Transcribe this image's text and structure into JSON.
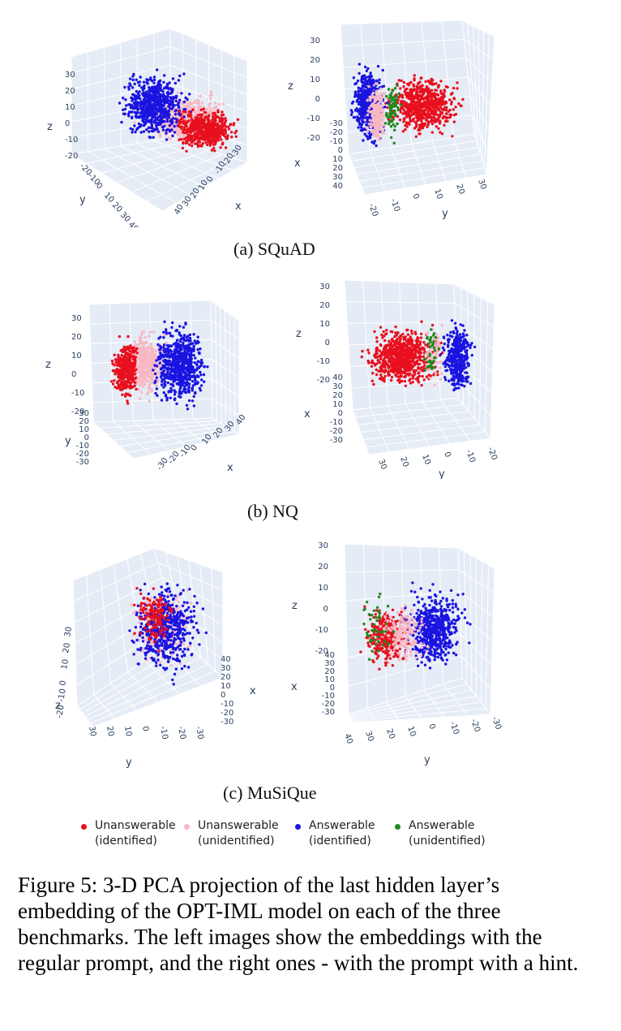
{
  "figure": {
    "subcaptions": [
      "(a) SQuAD",
      "(b) NQ",
      "(c) MuSiQue"
    ],
    "caption": "Figure 5: 3-D PCA projection of the last hidden layer’s embedding of the OPT-IML model on each of the three benchmarks. The left images show the embeddings with the regular prompt, and the right ones - with the prompt with a hint.",
    "legend": [
      {
        "line1": "Unanswerable",
        "line2": "(identified)",
        "color": "#e8101e"
      },
      {
        "line1": "Unanswerable",
        "line2": "(unidentified)",
        "color": "#f7b8c4"
      },
      {
        "line1": "Answerable",
        "line2": "(identified)",
        "color": "#1a14e0"
      },
      {
        "line1": "Answerable",
        "line2": "(unidentified)",
        "color": "#1e8a1e"
      }
    ]
  },
  "panels": [
    {
      "id": "squad-left",
      "axis_titles": {
        "x": "x",
        "y": "y",
        "z": "z"
      },
      "z_ticks": [
        "30",
        "20",
        "10",
        "0",
        "-10",
        "-20"
      ],
      "y_ticks": [
        "-20",
        "-10",
        "0",
        "10",
        "20",
        "30",
        "40"
      ],
      "x_ticks": [
        "40",
        "30",
        "20",
        "10",
        "0",
        "-10",
        "-20",
        "-30"
      ],
      "dominant_clusters": [
        "Answerable (identified)",
        "Unanswerable (unidentified)",
        "Unanswerable (identified)"
      ]
    },
    {
      "id": "squad-right",
      "axis_titles": {
        "x": "x",
        "y": "y",
        "z": "z"
      },
      "z_ticks": [
        "30",
        "20",
        "10",
        "0",
        "-10",
        "-20"
      ],
      "x_ticks": [
        "-30",
        "-20",
        "-10",
        "0",
        "10",
        "20",
        "30",
        "40"
      ],
      "y_ticks": [
        "-20",
        "-10",
        "0",
        "10",
        "20",
        "30"
      ],
      "dominant_clusters": [
        "Answerable (identified)",
        "Answerable (unidentified)",
        "Unanswerable (identified)"
      ]
    },
    {
      "id": "nq-left",
      "axis_titles": {
        "x": "x",
        "y": "y",
        "z": "z"
      },
      "z_ticks": [
        "30",
        "20",
        "10",
        "0",
        "-10",
        "-20"
      ],
      "y_ticks": [
        "30",
        "20",
        "10",
        "0",
        "-10",
        "-20",
        "-30"
      ],
      "x_ticks": [
        "-30",
        "-20",
        "-10",
        "0",
        "10",
        "20",
        "30",
        "40"
      ],
      "dominant_clusters": [
        "Unanswerable (identified)",
        "Unanswerable (unidentified)",
        "Answerable (identified)"
      ]
    },
    {
      "id": "nq-right",
      "axis_titles": {
        "x": "x",
        "y": "y",
        "z": "z"
      },
      "z_ticks": [
        "30",
        "20",
        "10",
        "0",
        "-10",
        "-20"
      ],
      "x_ticks": [
        "40",
        "30",
        "20",
        "10",
        "0",
        "-10",
        "-20",
        "-30"
      ],
      "y_ticks": [
        "30",
        "20",
        "10",
        "0",
        "-10",
        "-20"
      ],
      "dominant_clusters": [
        "Unanswerable (identified)",
        "Answerable (unidentified)",
        "Answerable (identified)"
      ]
    },
    {
      "id": "musique-left",
      "axis_titles": {
        "x": "x",
        "y": "y",
        "z": "z"
      },
      "z_ticks": [
        "30",
        "20",
        "10",
        "0",
        "-10",
        "-20"
      ],
      "x_ticks": [
        "40",
        "30",
        "20",
        "10",
        "0",
        "-10",
        "-20",
        "-30"
      ],
      "y_ticks": [
        "30",
        "20",
        "10",
        "0",
        "-10",
        "-20",
        "-30"
      ],
      "dominant_clusters": [
        "Unanswerable (identified)",
        "Unanswerable (unidentified)",
        "Answerable (identified)"
      ]
    },
    {
      "id": "musique-right",
      "axis_titles": {
        "x": "x",
        "y": "y",
        "z": "z"
      },
      "z_ticks": [
        "30",
        "20",
        "10",
        "0",
        "-10",
        "-20"
      ],
      "x_ticks": [
        "40",
        "30",
        "20",
        "10",
        "0",
        "-10",
        "-20",
        "-30"
      ],
      "y_ticks": [
        "40",
        "30",
        "20",
        "10",
        "0",
        "-10",
        "-20",
        "-30"
      ],
      "dominant_clusters": [
        "Unanswerable (identified)",
        "Answerable (unidentified)",
        "Answerable (identified)"
      ]
    }
  ]
}
